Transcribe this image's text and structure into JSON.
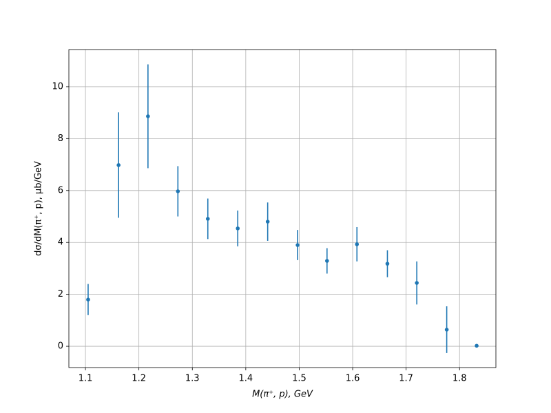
{
  "chart_data": {
    "type": "errorbar",
    "xlabel": "M(π⁺, p), GeV",
    "ylabel": "dσ/dM(π⁺, p), μb/GeV",
    "x": [
      1.105,
      1.162,
      1.217,
      1.273,
      1.329,
      1.385,
      1.441,
      1.497,
      1.552,
      1.608,
      1.665,
      1.72,
      1.776,
      1.832
    ],
    "series": [
      {
        "color": "#1f77b4",
        "values": [
          1.8,
          6.98,
          8.86,
          5.97,
          4.91,
          4.54,
          4.8,
          3.9,
          3.29,
          3.93,
          3.18,
          2.44,
          0.64,
          0.02
        ],
        "errors": [
          0.6,
          2.03,
          2.0,
          0.97,
          0.78,
          0.69,
          0.74,
          0.58,
          0.49,
          0.66,
          0.52,
          0.83,
          0.9,
          0
        ]
      }
    ],
    "xlim": [
      1.069,
      1.868
    ],
    "ylim": [
      -0.82,
      11.43
    ],
    "xticks": [
      1.1,
      1.2,
      1.3,
      1.4,
      1.5,
      1.6,
      1.7,
      1.8
    ],
    "yticks": [
      0,
      2,
      4,
      6,
      8,
      10
    ],
    "grid": true
  }
}
